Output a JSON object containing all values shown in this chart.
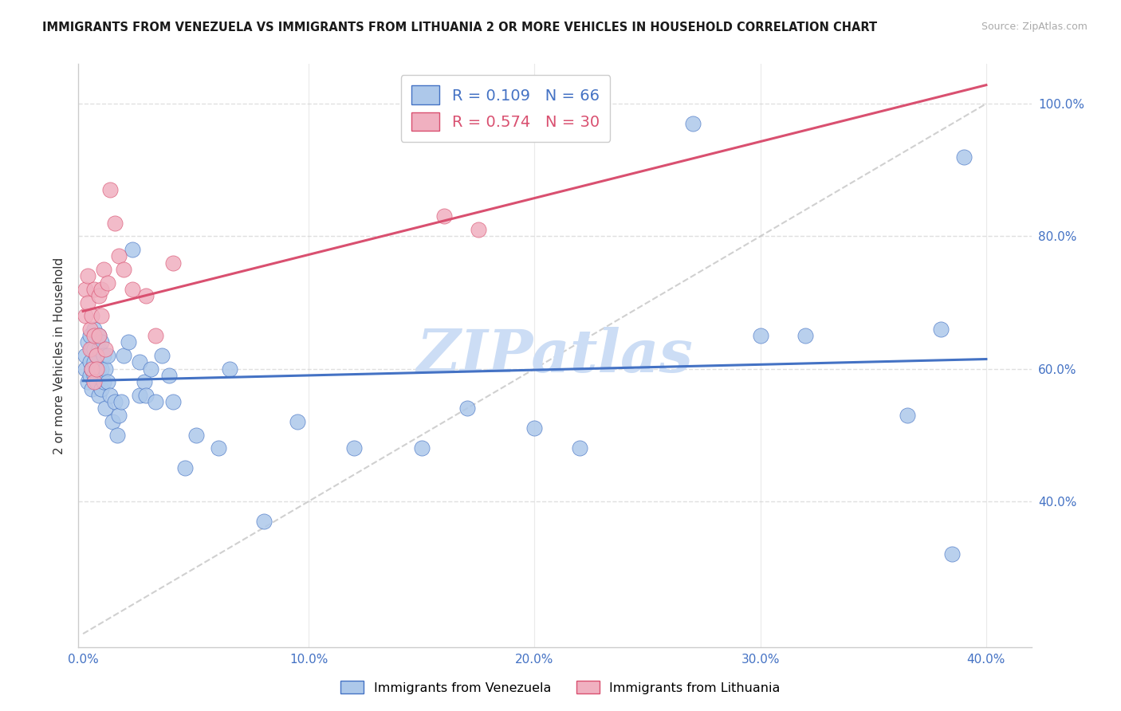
{
  "title": "IMMIGRANTS FROM VENEZUELA VS IMMIGRANTS FROM LITHUANIA 2 OR MORE VEHICLES IN HOUSEHOLD CORRELATION CHART",
  "source": "Source: ZipAtlas.com",
  "ylabel": "2 or more Vehicles in Household",
  "legend_venezuela": "Immigrants from Venezuela",
  "legend_lithuania": "Immigrants from Lithuania",
  "R_venezuela": 0.109,
  "N_venezuela": 66,
  "R_lithuania": 0.574,
  "N_lithuania": 30,
  "xlim": [
    -0.002,
    0.42
  ],
  "ylim": [
    0.18,
    1.06
  ],
  "xtick_vals": [
    0.0,
    0.1,
    0.2,
    0.3,
    0.4
  ],
  "ytick_vals": [
    0.4,
    0.6,
    0.8,
    1.0
  ],
  "color_venezuela": "#adc8ea",
  "color_lithuania": "#f0b0c0",
  "color_venezuela_line": "#4472c4",
  "color_lithuania_line": "#d95070",
  "color_diagonal": "#c8c8c8",
  "color_grid": "#e0e0e0",
  "watermark": "ZIPatlas",
  "watermark_color": "#ccddf5",
  "background_color": "#ffffff",
  "venezuela_x": [
    0.001,
    0.001,
    0.002,
    0.002,
    0.003,
    0.003,
    0.003,
    0.004,
    0.004,
    0.004,
    0.005,
    0.005,
    0.005,
    0.005,
    0.006,
    0.006,
    0.006,
    0.007,
    0.007,
    0.007,
    0.007,
    0.008,
    0.008,
    0.008,
    0.009,
    0.009,
    0.01,
    0.01,
    0.011,
    0.011,
    0.012,
    0.013,
    0.014,
    0.015,
    0.016,
    0.017,
    0.018,
    0.02,
    0.022,
    0.025,
    0.025,
    0.027,
    0.028,
    0.03,
    0.032,
    0.035,
    0.038,
    0.04,
    0.045,
    0.05,
    0.06,
    0.065,
    0.08,
    0.095,
    0.12,
    0.15,
    0.17,
    0.2,
    0.22,
    0.27,
    0.3,
    0.32,
    0.365,
    0.38,
    0.385,
    0.39
  ],
  "venezuela_y": [
    0.6,
    0.62,
    0.58,
    0.64,
    0.61,
    0.59,
    0.65,
    0.6,
    0.57,
    0.63,
    0.59,
    0.61,
    0.63,
    0.66,
    0.58,
    0.6,
    0.62,
    0.56,
    0.6,
    0.63,
    0.65,
    0.57,
    0.6,
    0.64,
    0.58,
    0.62,
    0.54,
    0.6,
    0.58,
    0.62,
    0.56,
    0.52,
    0.55,
    0.5,
    0.53,
    0.55,
    0.62,
    0.64,
    0.78,
    0.61,
    0.56,
    0.58,
    0.56,
    0.6,
    0.55,
    0.62,
    0.59,
    0.55,
    0.45,
    0.5,
    0.48,
    0.6,
    0.37,
    0.52,
    0.48,
    0.48,
    0.54,
    0.51,
    0.48,
    0.97,
    0.65,
    0.65,
    0.53,
    0.66,
    0.32,
    0.92
  ],
  "lithuania_x": [
    0.001,
    0.001,
    0.002,
    0.002,
    0.003,
    0.003,
    0.004,
    0.004,
    0.005,
    0.005,
    0.005,
    0.006,
    0.006,
    0.007,
    0.007,
    0.008,
    0.008,
    0.009,
    0.01,
    0.011,
    0.012,
    0.014,
    0.016,
    0.018,
    0.022,
    0.028,
    0.032,
    0.04,
    0.16,
    0.175
  ],
  "lithuania_y": [
    0.72,
    0.68,
    0.74,
    0.7,
    0.66,
    0.63,
    0.68,
    0.6,
    0.65,
    0.72,
    0.58,
    0.62,
    0.6,
    0.65,
    0.71,
    0.68,
    0.72,
    0.75,
    0.63,
    0.73,
    0.87,
    0.82,
    0.77,
    0.75,
    0.72,
    0.71,
    0.65,
    0.76,
    0.83,
    0.81
  ]
}
